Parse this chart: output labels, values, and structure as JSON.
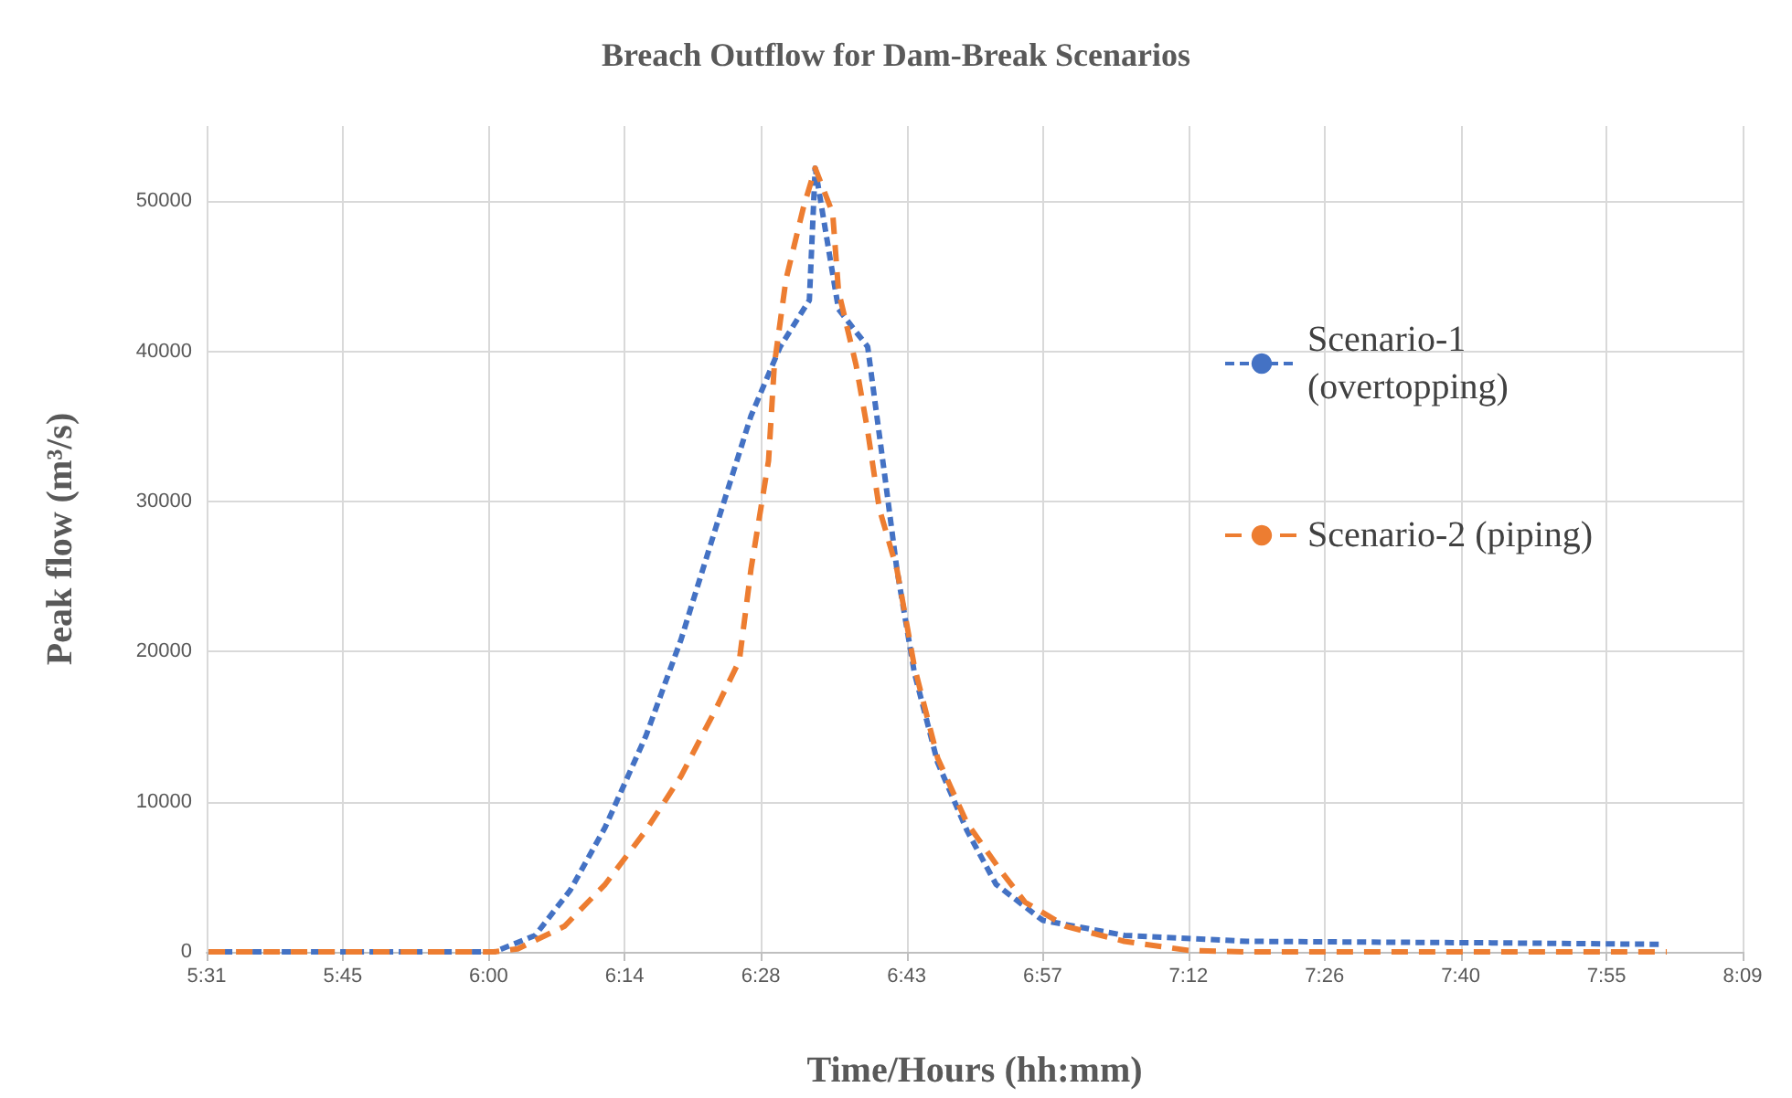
{
  "chart_data": {
    "type": "line",
    "title": "Breach Outflow for Dam-Break Scenarios",
    "xlabel": "Time/Hours (hh:mm)",
    "ylabel": "Peak flow (m³/s)",
    "xlim": [
      5.5167,
      8.15
    ],
    "xticks": [
      {
        "value": 5.5167,
        "label": "5:31"
      },
      {
        "value": 5.75,
        "label": "5:45"
      },
      {
        "value": 6.0,
        "label": "6:00"
      },
      {
        "value": 6.2333,
        "label": "6:14"
      },
      {
        "value": 6.4667,
        "label": "6:28"
      },
      {
        "value": 6.7167,
        "label": "6:43"
      },
      {
        "value": 6.95,
        "label": "6:57"
      },
      {
        "value": 7.2,
        "label": "7:12"
      },
      {
        "value": 7.4333,
        "label": "7:26"
      },
      {
        "value": 7.6667,
        "label": "7:40"
      },
      {
        "value": 7.9167,
        "label": "7:55"
      },
      {
        "value": 8.15,
        "label": "8:09"
      }
    ],
    "ylim": [
      0,
      55000
    ],
    "yticks": [
      0,
      10000,
      20000,
      30000,
      40000,
      50000
    ],
    "grid": true,
    "legend": "right",
    "marker": "none",
    "series": [
      {
        "name": "Scenario-1 (overtopping)",
        "color": "#4472c4",
        "line_style": "dotted",
        "x": [
          5.52,
          6.01,
          6.08,
          6.14,
          6.2,
          6.27,
          6.33,
          6.39,
          6.45,
          6.5,
          6.55,
          6.56,
          6.6,
          6.65,
          6.68,
          6.7,
          6.73,
          6.77,
          6.82,
          6.87,
          6.95,
          7.09,
          7.3,
          7.72,
          8.01
        ],
        "values": [
          0,
          0,
          1100,
          4100,
          8300,
          14400,
          20800,
          28300,
          35700,
          40300,
          43400,
          52200,
          42800,
          40300,
          31500,
          25500,
          18600,
          12600,
          8100,
          4500,
          2100,
          1100,
          700,
          600,
          500
        ]
      },
      {
        "name": "Scenario-2 (piping)",
        "color": "#ed7d31",
        "line_style": "dashed",
        "x": [
          5.52,
          6.01,
          6.05,
          6.13,
          6.2,
          6.27,
          6.33,
          6.39,
          6.43,
          6.45,
          6.48,
          6.49,
          6.51,
          6.54,
          6.56,
          6.59,
          6.6,
          6.63,
          6.65,
          6.67,
          6.7,
          6.73,
          6.77,
          6.82,
          6.88,
          6.92,
          6.99,
          7.09,
          7.2,
          7.3,
          8.02
        ],
        "values": [
          0,
          0,
          200,
          1700,
          4500,
          8100,
          11700,
          16200,
          19400,
          25500,
          32700,
          39100,
          44800,
          49600,
          52200,
          49200,
          44000,
          39100,
          34700,
          29500,
          25500,
          19000,
          12900,
          8600,
          5300,
          3300,
          1700,
          700,
          100,
          0,
          0
        ]
      }
    ]
  }
}
